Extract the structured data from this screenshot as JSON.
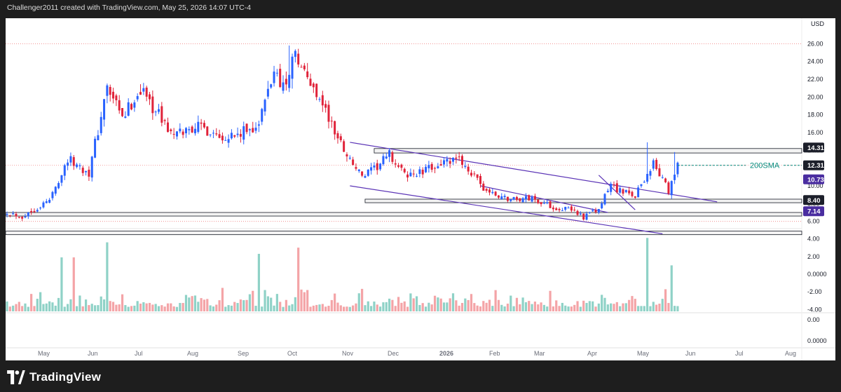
{
  "header": {
    "attribution": "Challenger2011 created with TradingView.com, May 25, 2026 14:07 UTC-4"
  },
  "footer": {
    "brand": "TradingView"
  },
  "colors": {
    "bull": "#2962ff",
    "bear": "#e0233a",
    "volume_up": "#8fd2c7",
    "volume_down": "#f4a4a7",
    "channel": "#5b34b6",
    "tag_purple": "#4a2da0",
    "tag_dark": "#1c1f2a",
    "sma": "#00897b",
    "level_dotted": "#f08080"
  },
  "chart_data": {
    "type": "candlestick",
    "currency": "USD",
    "price_axis": {
      "ticks": [
        "26.00",
        "24.00",
        "22.00",
        "20.00",
        "18.00",
        "16.00",
        "14.00",
        "12.00",
        "10.00",
        "8.00",
        "6.00"
      ],
      "range": [
        5.5,
        26.5
      ]
    },
    "indicator_axis": {
      "ticks": [
        "4.00",
        "2.00",
        "0.0000",
        "-2.00",
        "-4.00"
      ],
      "range": [
        -4.2,
        4.2
      ]
    },
    "sub_axis": {
      "ticks": [
        "0.00",
        "0.0000"
      ]
    },
    "x_axis": {
      "labels": [
        "May",
        "Jun",
        "Jul",
        "Aug",
        "Sep",
        "Oct",
        "Nov",
        "Dec",
        "2026",
        "Feb",
        "Mar",
        "Apr",
        "May",
        "Jun",
        "Jul",
        "Aug"
      ]
    },
    "level_tags": [
      {
        "value": "14.31",
        "style": "dark"
      },
      {
        "value": "12.31",
        "style": "dark"
      },
      {
        "value": "10.73",
        "style": "purple"
      },
      {
        "value": "8.40",
        "style": "dark"
      },
      {
        "value": "7.14",
        "style": "purple"
      }
    ],
    "sma_label": "200SMA",
    "sma_value": 12.31,
    "dotted_levels": [
      26.0,
      12.31,
      6.0
    ],
    "zones": [
      {
        "from_index": 121,
        "to_index": 315,
        "low": 13.7,
        "high": 14.2
      },
      {
        "from_index": 118,
        "to_index": 315,
        "low": 8.1,
        "high": 8.5
      },
      {
        "from_index": 0,
        "to_index": 315,
        "low": 6.6,
        "high": 7.0
      },
      {
        "from_index": 0,
        "to_index": 315,
        "low": 4.5,
        "high": 4.9
      }
    ],
    "trendlines": [
      {
        "from": [
          113,
          14.9
        ],
        "to": [
          234,
          8.2
        ]
      },
      {
        "from": [
          113,
          10.0
        ],
        "to": [
          216,
          4.6
        ]
      },
      {
        "from": [
          156,
          10.0
        ],
        "to": [
          198,
          7.0
        ]
      },
      {
        "from": [
          195,
          11.2
        ],
        "to": [
          207,
          7.3
        ]
      }
    ],
    "anchor_closes": [
      {
        "i": 0,
        "c": 7.1
      },
      {
        "i": 5,
        "c": 6.5
      },
      {
        "i": 14,
        "c": 8.4
      },
      {
        "i": 20,
        "c": 13.0
      },
      {
        "i": 27,
        "c": 11.5
      },
      {
        "i": 33,
        "c": 21.0
      },
      {
        "i": 38,
        "c": 17.5
      },
      {
        "i": 44,
        "c": 21.0
      },
      {
        "i": 50,
        "c": 18.0
      },
      {
        "i": 55,
        "c": 15.5
      },
      {
        "i": 62,
        "c": 16.8
      },
      {
        "i": 70,
        "c": 15.8
      },
      {
        "i": 76,
        "c": 15.6
      },
      {
        "i": 83,
        "c": 17.0
      },
      {
        "i": 88,
        "c": 23.0
      },
      {
        "i": 92,
        "c": 21.0
      },
      {
        "i": 94,
        "c": 25.0
      },
      {
        "i": 99,
        "c": 22.0
      },
      {
        "i": 103,
        "c": 20.0
      },
      {
        "i": 108,
        "c": 16.0
      },
      {
        "i": 113,
        "c": 13.0
      },
      {
        "i": 117,
        "c": 11.0
      },
      {
        "i": 121,
        "c": 11.8
      },
      {
        "i": 126,
        "c": 13.5
      },
      {
        "i": 131,
        "c": 11.2
      },
      {
        "i": 137,
        "c": 11.5
      },
      {
        "i": 142,
        "c": 12.5
      },
      {
        "i": 150,
        "c": 12.8
      },
      {
        "i": 156,
        "c": 10.0
      },
      {
        "i": 160,
        "c": 9.0
      },
      {
        "i": 166,
        "c": 8.5
      },
      {
        "i": 173,
        "c": 8.6
      },
      {
        "i": 180,
        "c": 7.6
      },
      {
        "i": 187,
        "c": 7.2
      },
      {
        "i": 190,
        "c": 6.5
      },
      {
        "i": 195,
        "c": 7.3
      },
      {
        "i": 199,
        "c": 10.2
      },
      {
        "i": 203,
        "c": 9.2
      },
      {
        "i": 207,
        "c": 9.0
      },
      {
        "i": 210,
        "c": 10.8
      },
      {
        "i": 213,
        "c": 12.5
      },
      {
        "i": 216,
        "c": 10.7
      },
      {
        "i": 218,
        "c": 9.3
      },
      {
        "i": 221,
        "c": 12.3
      }
    ],
    "spikes": [
      {
        "i": 93,
        "type": "high",
        "value": 25.8
      },
      {
        "i": 211,
        "type": "high",
        "value": 14.9
      },
      {
        "i": 220,
        "type": "high",
        "value": 13.8
      }
    ],
    "volume_spikes": [
      {
        "i": 18,
        "v": 1.9
      },
      {
        "i": 22,
        "v": 1.9
      },
      {
        "i": 33,
        "v": 3.6
      },
      {
        "i": 83,
        "v": 2.3
      },
      {
        "i": 96,
        "v": 3.0
      },
      {
        "i": 211,
        "v": 4.1
      },
      {
        "i": 219,
        "v": 1.0
      }
    ]
  }
}
